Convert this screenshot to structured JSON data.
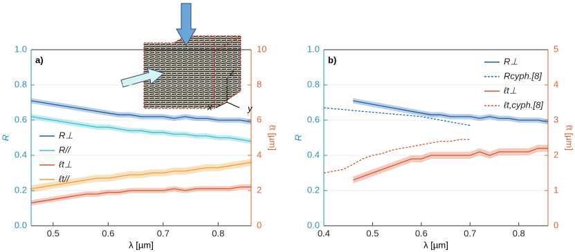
{
  "chart_data": [
    {
      "type": "line",
      "panel_label": "a)",
      "xlabel": "λ [µm]",
      "ylabel": "R",
      "y2label": "ℓt [µm]",
      "xlim": [
        0.46,
        0.86
      ],
      "xticks": [
        0.5,
        0.6,
        0.7,
        0.8
      ],
      "ylim": [
        0,
        1
      ],
      "yticks": [
        {
          "value": 0,
          "label": "0.0"
        },
        0.2,
        0.4,
        0.6,
        0.8,
        {
          "value": 1,
          "label": "1.0"
        }
      ],
      "y2lim": [
        0,
        10
      ],
      "y2ticks": [
        0,
        2,
        4,
        6,
        8,
        10
      ],
      "grid": true,
      "legend": "left",
      "annotations": [
        "x",
        "y",
        "z"
      ],
      "series": [
        {
          "name": "R⊥",
          "color": "#1a5fa8",
          "error": 0.015,
          "x": [
            0.46,
            0.48,
            0.5,
            0.52,
            0.54,
            0.56,
            0.58,
            0.6,
            0.62,
            0.64,
            0.66,
            0.68,
            0.7,
            0.72,
            0.74,
            0.76,
            0.78,
            0.8,
            0.82,
            0.84,
            0.86
          ],
          "values": [
            0.71,
            0.7,
            0.69,
            0.68,
            0.67,
            0.66,
            0.65,
            0.64,
            0.63,
            0.63,
            0.62,
            0.62,
            0.62,
            0.61,
            0.62,
            0.61,
            0.61,
            0.6,
            0.6,
            0.6,
            0.59
          ]
        },
        {
          "name": "R//",
          "color": "#38c0d0",
          "error": 0.015,
          "x": [
            0.46,
            0.48,
            0.5,
            0.52,
            0.54,
            0.56,
            0.58,
            0.6,
            0.62,
            0.64,
            0.66,
            0.68,
            0.7,
            0.72,
            0.74,
            0.76,
            0.78,
            0.8,
            0.82,
            0.84,
            0.86
          ],
          "values": [
            0.62,
            0.61,
            0.6,
            0.59,
            0.58,
            0.57,
            0.56,
            0.56,
            0.55,
            0.54,
            0.54,
            0.53,
            0.53,
            0.52,
            0.52,
            0.51,
            0.51,
            0.5,
            0.5,
            0.49,
            0.48
          ]
        },
        {
          "name": "ℓt⊥",
          "color": "#d9542a",
          "axis": "y2",
          "error": 0.15,
          "x": [
            0.46,
            0.48,
            0.5,
            0.52,
            0.54,
            0.56,
            0.58,
            0.6,
            0.62,
            0.64,
            0.66,
            0.68,
            0.7,
            0.72,
            0.74,
            0.76,
            0.78,
            0.8,
            0.82,
            0.84,
            0.86
          ],
          "values": [
            1.3,
            1.4,
            1.5,
            1.6,
            1.7,
            1.8,
            1.8,
            1.9,
            1.9,
            2.0,
            2.0,
            2.0,
            2.0,
            2.1,
            2.0,
            2.1,
            2.1,
            2.1,
            2.1,
            2.2,
            2.2
          ]
        },
        {
          "name": "ℓt//",
          "color": "#f0a030",
          "axis": "y2",
          "error": 0.2,
          "x": [
            0.46,
            0.48,
            0.5,
            0.52,
            0.54,
            0.56,
            0.58,
            0.6,
            0.62,
            0.64,
            0.66,
            0.68,
            0.7,
            0.72,
            0.74,
            0.76,
            0.78,
            0.8,
            0.82,
            0.84,
            0.86
          ],
          "values": [
            2.1,
            2.2,
            2.3,
            2.4,
            2.5,
            2.6,
            2.7,
            2.7,
            2.8,
            2.9,
            2.9,
            3.0,
            3.0,
            3.1,
            3.1,
            3.2,
            3.3,
            3.3,
            3.4,
            3.5,
            3.6
          ]
        }
      ]
    },
    {
      "type": "line",
      "panel_label": "b)",
      "xlabel": "λ [µm]",
      "ylabel": "R",
      "y2label": "ℓt [µm]",
      "xlim": [
        0.4,
        0.86
      ],
      "xticks": [
        0.4,
        0.5,
        0.6,
        0.7,
        0.8
      ],
      "ylim": [
        0,
        1
      ],
      "yticks": [
        {
          "value": 0,
          "label": "0.0"
        },
        0.2,
        0.4,
        0.6,
        0.8,
        {
          "value": 1,
          "label": "1.0"
        }
      ],
      "y2lim": [
        0,
        5
      ],
      "y2ticks": [
        0,
        1,
        2,
        3,
        4,
        5
      ],
      "grid": true,
      "legend": "upper right",
      "series": [
        {
          "name": "R⊥",
          "color": "#1a5fa8",
          "error": 0.015,
          "x": [
            0.46,
            0.48,
            0.5,
            0.52,
            0.54,
            0.56,
            0.58,
            0.6,
            0.62,
            0.64,
            0.66,
            0.68,
            0.7,
            0.72,
            0.74,
            0.76,
            0.78,
            0.8,
            0.82,
            0.84,
            0.86
          ],
          "values": [
            0.71,
            0.7,
            0.69,
            0.68,
            0.67,
            0.66,
            0.65,
            0.64,
            0.63,
            0.63,
            0.62,
            0.62,
            0.62,
            0.61,
            0.62,
            0.61,
            0.61,
            0.6,
            0.6,
            0.6,
            0.59
          ]
        },
        {
          "name": "Rcyph.[8]",
          "color": "#1a6fc0",
          "dashed": true,
          "x": [
            0.4,
            0.42,
            0.44,
            0.46,
            0.48,
            0.5,
            0.52,
            0.54,
            0.56,
            0.58,
            0.6,
            0.62,
            0.64,
            0.66,
            0.68,
            0.7
          ],
          "values": [
            0.67,
            0.665,
            0.66,
            0.655,
            0.65,
            0.645,
            0.64,
            0.635,
            0.63,
            0.625,
            0.62,
            0.61,
            0.6,
            0.59,
            0.58,
            0.57
          ]
        },
        {
          "name": "ℓt⊥",
          "color": "#d9542a",
          "axis": "y2",
          "error": 0.1,
          "x": [
            0.46,
            0.48,
            0.5,
            0.52,
            0.54,
            0.56,
            0.58,
            0.6,
            0.62,
            0.64,
            0.66,
            0.68,
            0.7,
            0.72,
            0.74,
            0.76,
            0.78,
            0.8,
            0.82,
            0.84,
            0.86
          ],
          "values": [
            1.3,
            1.4,
            1.5,
            1.6,
            1.7,
            1.8,
            1.9,
            1.9,
            2.0,
            2.0,
            2.0,
            2.0,
            2.0,
            2.1,
            2.0,
            2.1,
            2.1,
            2.1,
            2.1,
            2.2,
            2.2
          ]
        },
        {
          "name": "ℓt,cyph.[8]",
          "color": "#d9542a",
          "axis": "y2",
          "dashed": true,
          "x": [
            0.4,
            0.42,
            0.44,
            0.46,
            0.48,
            0.5,
            0.52,
            0.54,
            0.56,
            0.58,
            0.6,
            0.62,
            0.64,
            0.66,
            0.68,
            0.7
          ],
          "values": [
            1.5,
            1.55,
            1.6,
            1.75,
            1.9,
            2.0,
            2.05,
            2.15,
            2.2,
            2.25,
            2.3,
            2.35,
            2.4,
            2.4,
            2.45,
            2.45
          ]
        }
      ]
    }
  ]
}
